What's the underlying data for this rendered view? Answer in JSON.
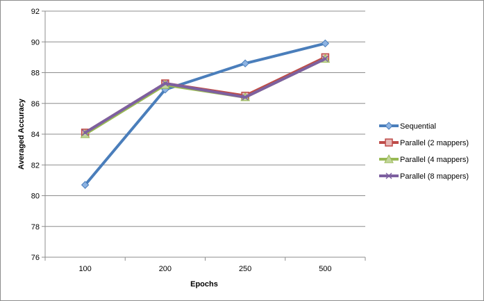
{
  "chart_data": {
    "type": "line",
    "categories": [
      "100",
      "200",
      "250",
      "500"
    ],
    "xlabel": "Epochs",
    "ylabel": "Averaged Accuracy",
    "ylim": [
      76,
      92
    ],
    "ytick_step": 2,
    "grid": "horizontal",
    "legend_position": "right",
    "series": [
      {
        "name": "Sequential",
        "values": [
          80.7,
          86.9,
          88.6,
          89.9
        ],
        "color": "#4a7ebb",
        "marker": "diamond"
      },
      {
        "name": "Parallel (2 mappers)",
        "values": [
          84.1,
          87.3,
          86.5,
          89.0
        ],
        "color": "#be4b48",
        "marker": "square"
      },
      {
        "name": "Parallel (4 mappers)",
        "values": [
          84.0,
          87.2,
          86.4,
          88.9
        ],
        "color": "#98b954",
        "marker": "triangle"
      },
      {
        "name": "Parallel (8 mappers)",
        "values": [
          84.1,
          87.3,
          86.4,
          88.9
        ],
        "color": "#7d60a0",
        "marker": "x"
      }
    ]
  }
}
